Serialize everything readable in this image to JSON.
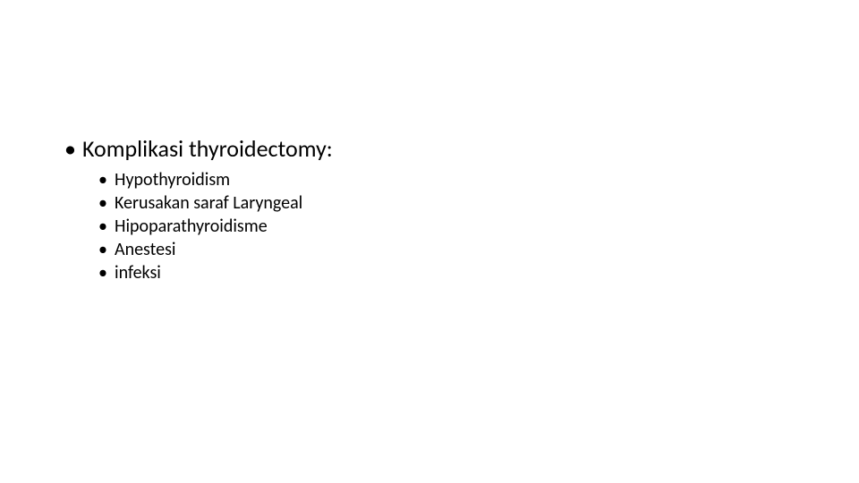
{
  "slide": {
    "background_color": "#ffffff",
    "text_color": "#000000",
    "heading": {
      "text": "Komplikasi thyroidectomy:",
      "fontsize": 26,
      "bullet": "•"
    },
    "sub_bullet": "•",
    "sub_fontsize": 20,
    "items": [
      "Hypothyroidism",
      "Kerusakan saraf Laryngeal",
      "Hipoparathyroidisme",
      "Anestesi",
      "infeksi"
    ]
  }
}
